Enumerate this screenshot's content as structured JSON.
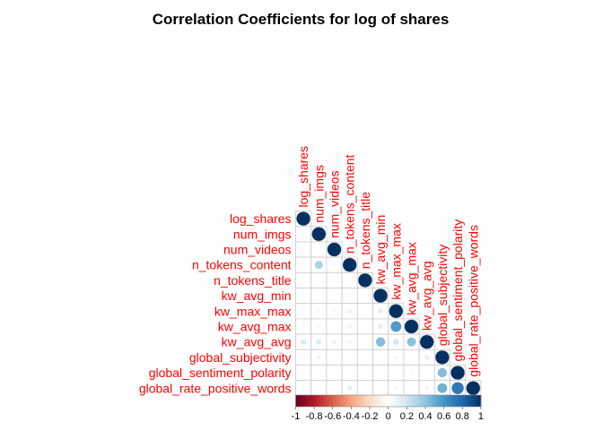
{
  "chart_data": {
    "type": "heatmap",
    "subtype": "corrplot-lower-circle",
    "title": "Correlation Coefficients for log of shares",
    "variables": [
      "log_shares",
      "num_imgs",
      "num_videos",
      "n_tokens_content",
      "n_tokens_title",
      "kw_avg_min",
      "kw_max_max",
      "kw_avg_max",
      "kw_avg_avg",
      "global_subjectivity",
      "global_sentiment_polarity",
      "global_rate_positive_words"
    ],
    "matrix": [
      [
        1.0,
        null,
        null,
        null,
        null,
        null,
        null,
        null,
        null,
        null,
        null,
        null
      ],
      [
        0.04,
        1.0,
        null,
        null,
        null,
        null,
        null,
        null,
        null,
        null,
        null,
        null
      ],
      [
        0.02,
        0.03,
        1.0,
        null,
        null,
        null,
        null,
        null,
        null,
        null,
        null,
        null
      ],
      [
        0.0,
        0.32,
        0.05,
        1.0,
        null,
        null,
        null,
        null,
        null,
        null,
        null,
        null
      ],
      [
        -0.01,
        0.02,
        0.05,
        0.02,
        1.0,
        null,
        null,
        null,
        null,
        null,
        null,
        null
      ],
      [
        0.03,
        0.0,
        0.0,
        -0.05,
        0.0,
        1.0,
        null,
        null,
        null,
        null,
        null,
        null
      ],
      [
        0.03,
        0.06,
        0.05,
        0.09,
        -0.04,
        0.12,
        1.0,
        null,
        null,
        null,
        null,
        null
      ],
      [
        0.04,
        0.06,
        0.02,
        -0.09,
        -0.01,
        0.13,
        0.57,
        1.0,
        null,
        null,
        null,
        null
      ],
      [
        0.15,
        0.15,
        0.09,
        -0.08,
        -0.02,
        0.43,
        0.18,
        0.41,
        1.0,
        null,
        null,
        null
      ],
      [
        0.04,
        0.08,
        0.04,
        0.03,
        -0.01,
        0.02,
        0.06,
        0.02,
        0.1,
        1.0,
        null,
        null
      ],
      [
        0.02,
        0.01,
        -0.04,
        0.02,
        -0.01,
        0.0,
        -0.01,
        -0.05,
        0.05,
        0.43,
        1.0,
        null
      ],
      [
        -0.01,
        0.03,
        0.0,
        0.12,
        -0.04,
        0.0,
        -0.06,
        -0.01,
        0.07,
        0.48,
        0.72,
        1.0
      ]
    ],
    "colorbar": {
      "range": [
        -1,
        1
      ],
      "ticks": [
        "-1",
        "-0.8",
        "-0.6",
        "-0.4",
        "-0.2",
        "0",
        "0.2",
        "0.4",
        "0.6",
        "0.8",
        "1"
      ],
      "colors": {
        "negative": "#67001F",
        "zero": "#FFFFFF",
        "positive": "#053061"
      }
    },
    "label_color": "#FF0000",
    "grid_color": "#C9C9C9"
  }
}
